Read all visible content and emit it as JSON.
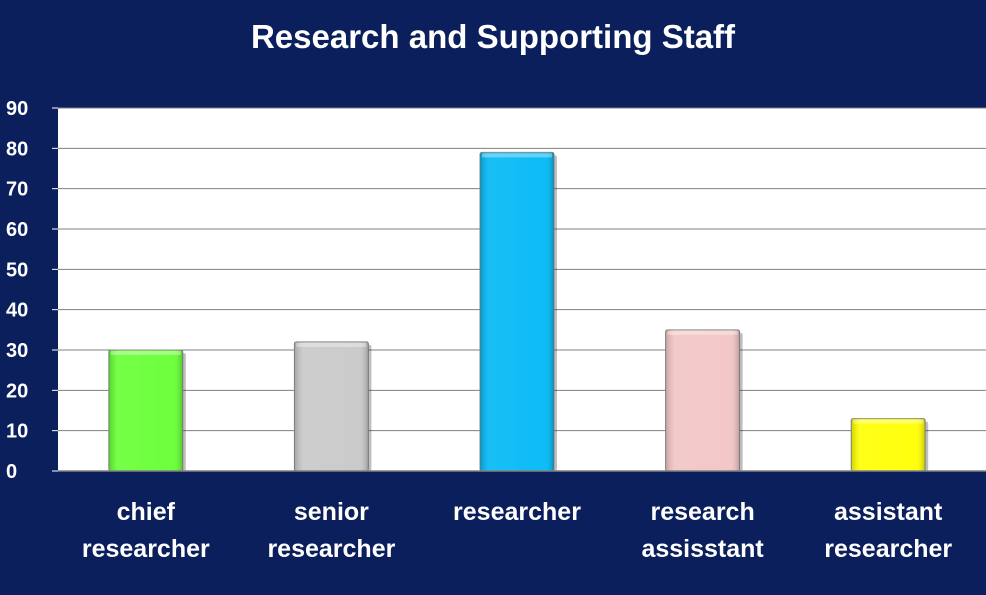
{
  "chart_data": {
    "type": "bar",
    "title": "Research and Supporting Staff",
    "xlabel": "",
    "ylabel": "",
    "categories": [
      [
        "chief",
        "researcher"
      ],
      [
        "senior",
        "researcher"
      ],
      [
        "researcher"
      ],
      [
        "research",
        "assisstant"
      ],
      [
        "assistant",
        "researcher"
      ]
    ],
    "values": [
      30,
      32,
      79,
      35,
      13
    ],
    "colors": [
      "#66ff33",
      "#c8c8c8",
      "#00b8f5",
      "#f2c4c4",
      "#ffff00"
    ],
    "ylim": [
      0,
      90
    ],
    "yticks": [
      "0",
      "10",
      "20",
      "30",
      "40",
      "50",
      "60",
      "70",
      "80",
      "90"
    ],
    "grid": true,
    "legend": "none",
    "plot_background": "#ffffff",
    "page_background": "#0a1f5c"
  }
}
